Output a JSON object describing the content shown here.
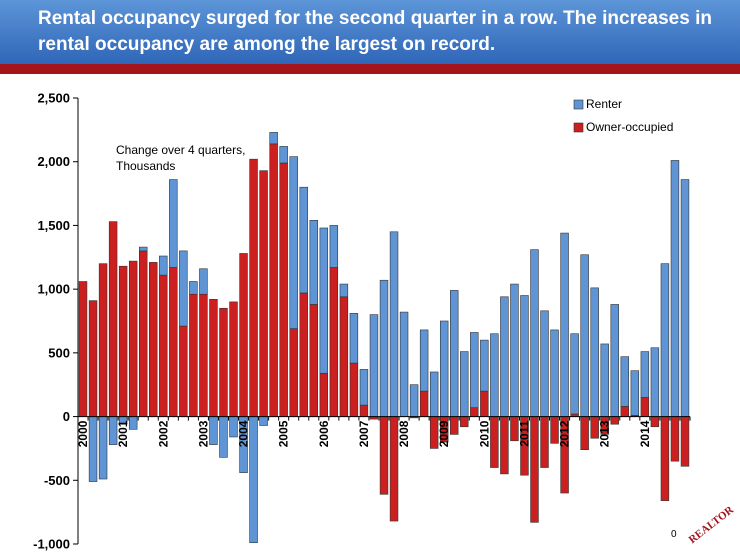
{
  "header": {
    "title": "Rental occupancy surged for the second quarter in a row. The increases in rental occupancy are  among the largest on record.",
    "bar_color": "#3b73c4",
    "rule_color": "#a3141b"
  },
  "footer": {
    "page_number": "0",
    "logo_icon": "realtor-logo-icon",
    "logo_text": "REALTOR"
  },
  "chart_data": {
    "type": "bar",
    "stacking": "diverging",
    "ylim": [
      -1000,
      2500
    ],
    "yticks": [
      -1000,
      -500,
      0,
      500,
      1000,
      1500,
      2000,
      2500
    ],
    "ytick_labels": [
      "-1,000",
      "-500",
      "0",
      "500",
      "1,000",
      "1,500",
      "2,000",
      "2,500"
    ],
    "xtick_labels": [
      "2000",
      "2001",
      "2002",
      "2003",
      "2004",
      "2005",
      "2006",
      "2007",
      "2008",
      "2009",
      "2010",
      "2011",
      "2012",
      "2013",
      "2014"
    ],
    "annotation": "Change over 4 quarters,\nThousands",
    "legend": {
      "position": "top-right",
      "entries": [
        "Renter",
        "Owner-occupied"
      ]
    },
    "grid": false,
    "series": [
      {
        "name": "Owner-occupied",
        "color": "#cc1f1f",
        "values": [
          1060,
          910,
          1200,
          1530,
          1180,
          1220,
          1300,
          1210,
          1110,
          1170,
          710,
          960,
          960,
          920,
          850,
          900,
          1280,
          2020,
          1930,
          2140,
          1990,
          690,
          970,
          880,
          340,
          1170,
          940,
          420,
          90,
          -20,
          -610,
          -820,
          0,
          -10,
          200,
          -250,
          -200,
          -140,
          -80,
          70,
          200,
          -400,
          -450,
          -190,
          -460,
          -830,
          -400,
          -210,
          -600,
          20,
          -260,
          -170,
          -140,
          -60,
          80,
          10,
          150,
          -80,
          -660,
          -350,
          -390
        ]
      },
      {
        "name": "Renter",
        "color": "#5f95d4",
        "values": [
          0,
          -510,
          -490,
          -220,
          -60,
          -100,
          30,
          0,
          150,
          690,
          590,
          100,
          200,
          -220,
          -320,
          -160,
          -440,
          -990,
          -70,
          90,
          130,
          1350,
          830,
          660,
          1140,
          330,
          100,
          390,
          280,
          800,
          1070,
          1450,
          820,
          250,
          480,
          350,
          750,
          990,
          510,
          590,
          400,
          650,
          940,
          1040,
          950,
          1310,
          830,
          680,
          1440,
          630,
          1270,
          1010,
          570,
          880,
          390,
          350,
          360,
          540,
          1200,
          2010,
          1860
        ]
      }
    ]
  }
}
